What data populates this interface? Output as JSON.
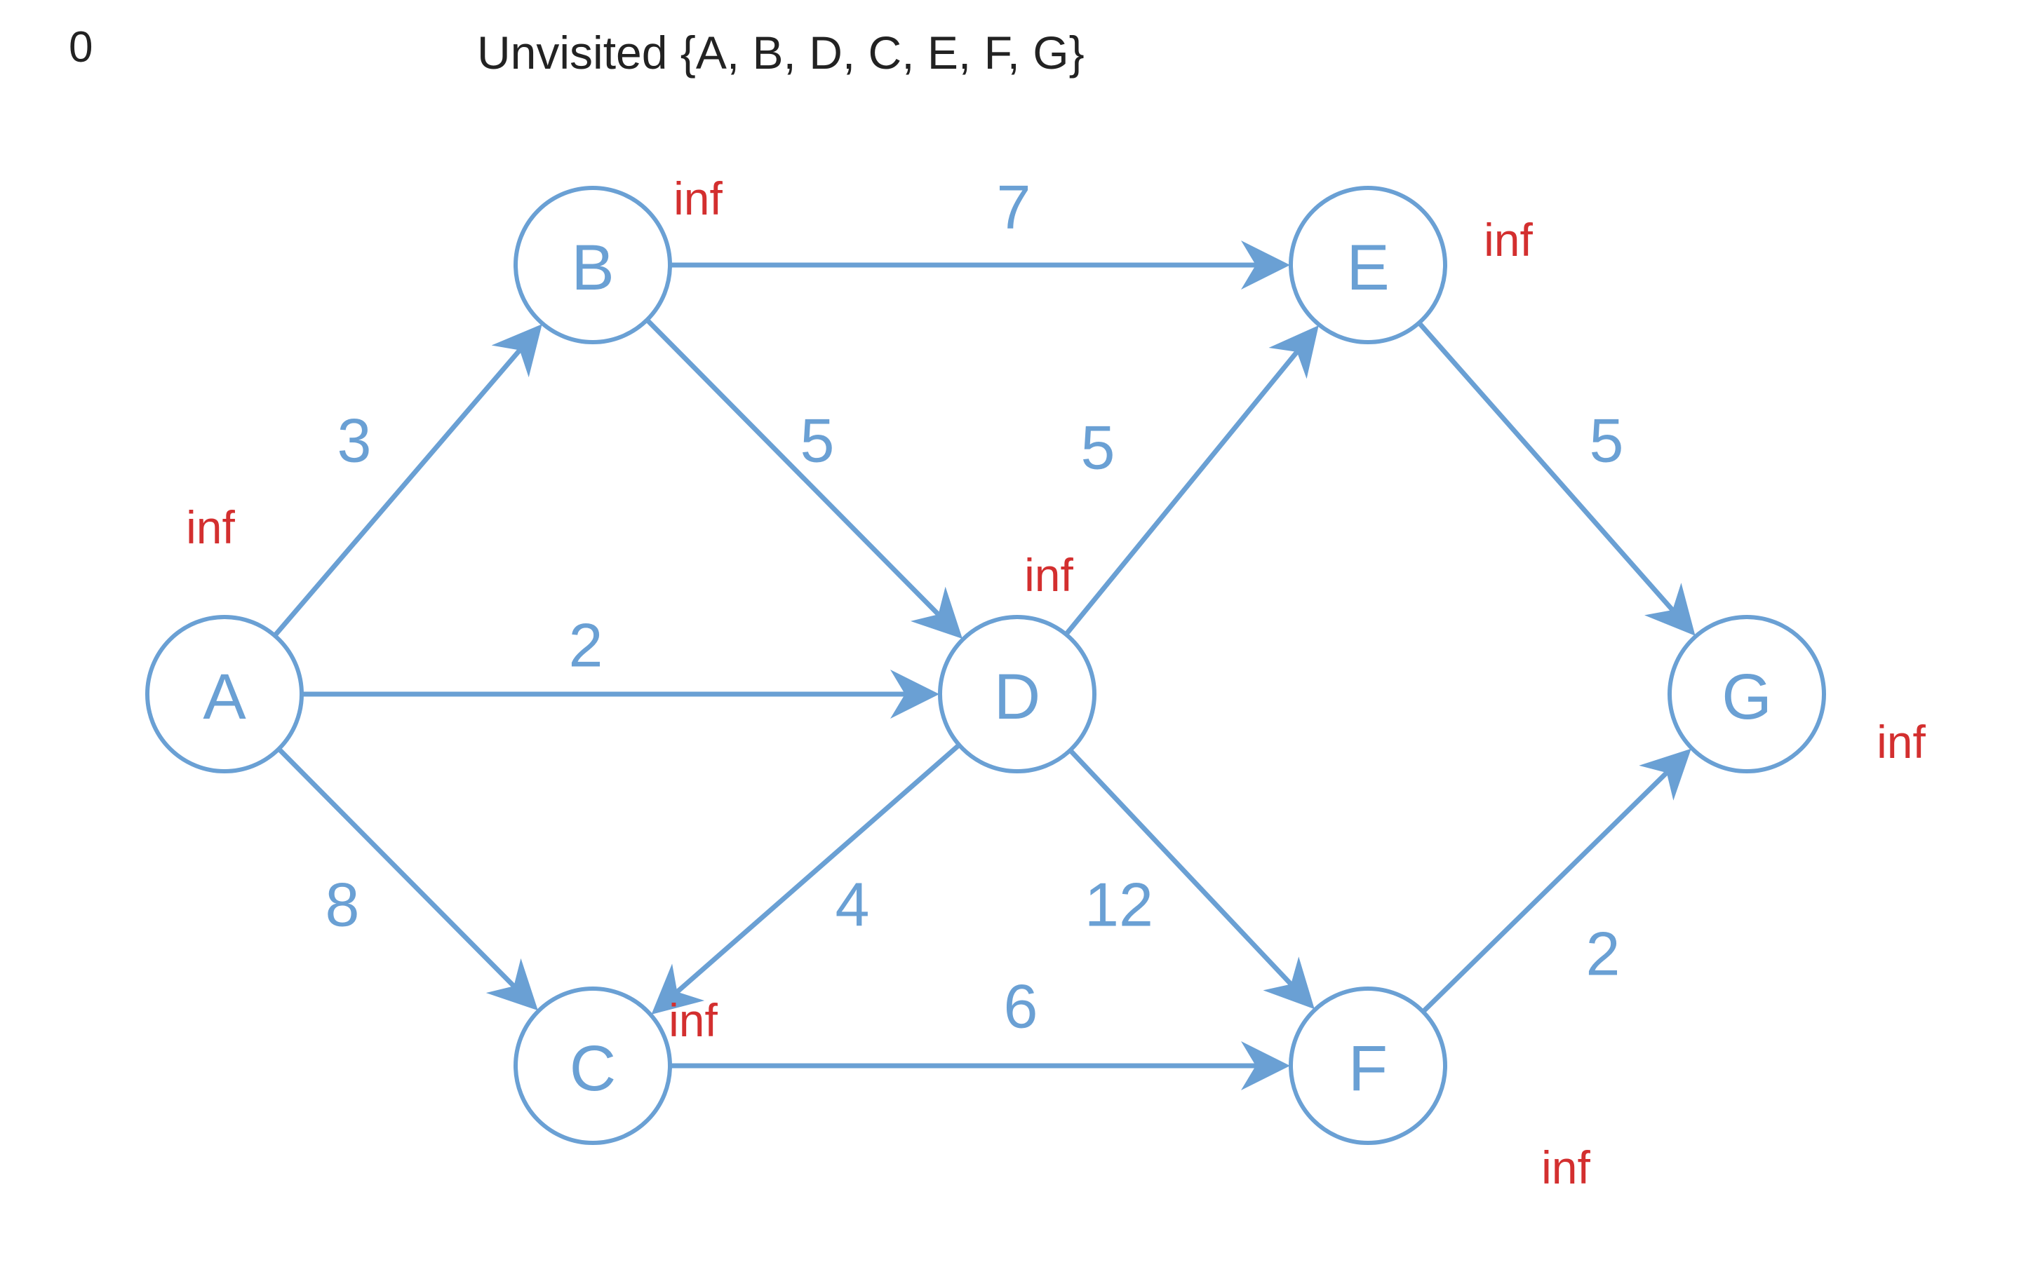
{
  "header": {
    "step": "0",
    "unvisited": "Unvisited {A, B, D, C, E, F, G}"
  },
  "colors": {
    "edge": "#6aa0d4",
    "distance": "#d32f2f",
    "text": "#222222"
  },
  "nodes": [
    {
      "id": "A",
      "distance": "inf"
    },
    {
      "id": "B",
      "distance": "inf"
    },
    {
      "id": "C",
      "distance": "inf"
    },
    {
      "id": "D",
      "distance": "inf"
    },
    {
      "id": "E",
      "distance": "inf"
    },
    {
      "id": "F",
      "distance": "inf"
    },
    {
      "id": "G",
      "distance": "inf"
    }
  ],
  "edges": [
    {
      "from": "A",
      "to": "B",
      "weight": "3"
    },
    {
      "from": "A",
      "to": "D",
      "weight": "2"
    },
    {
      "from": "A",
      "to": "C",
      "weight": "8"
    },
    {
      "from": "B",
      "to": "E",
      "weight": "7"
    },
    {
      "from": "B",
      "to": "D",
      "weight": "5"
    },
    {
      "from": "D",
      "to": "E",
      "weight": "5"
    },
    {
      "from": "D",
      "to": "C",
      "weight": "4"
    },
    {
      "from": "D",
      "to": "F",
      "weight": "12"
    },
    {
      "from": "C",
      "to": "F",
      "weight": "6"
    },
    {
      "from": "E",
      "to": "G",
      "weight": "5"
    },
    {
      "from": "F",
      "to": "G",
      "weight": "2"
    }
  ]
}
